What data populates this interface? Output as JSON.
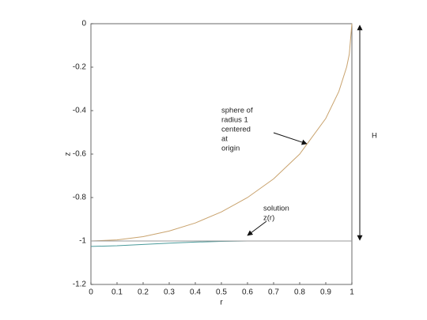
{
  "chart_data": {
    "type": "line",
    "xlabel": "r",
    "ylabel": "z",
    "xlim": [
      0,
      1
    ],
    "ylim": [
      -1.2,
      0
    ],
    "xticks": [
      0,
      0.1,
      0.2,
      0.3,
      0.4,
      0.5,
      0.6,
      0.7,
      0.8,
      0.9,
      1
    ],
    "yticks": [
      -1.2,
      -1,
      -0.8,
      -0.6,
      -0.4,
      -0.2,
      0
    ],
    "series": [
      {
        "color": "#c9a36e",
        "x": [
          0,
          0.1,
          0.2,
          0.3,
          0.4,
          0.5,
          0.6,
          0.7,
          0.8,
          0.9,
          0.95,
          0.98,
          0.99,
          1
        ],
        "values": [
          -1,
          -0.995,
          -0.98,
          -0.954,
          -0.917,
          -0.866,
          -0.8,
          -0.714,
          -0.6,
          -0.436,
          -0.312,
          -0.199,
          -0.141,
          0
        ]
      },
      {
        "color": "#4a9a9a",
        "x": [
          0,
          0.1,
          0.2,
          0.3,
          0.4,
          0.5,
          0.6,
          0.7,
          0.8,
          0.9,
          1
        ],
        "values": [
          -1.025,
          -1.022,
          -1.016,
          -1.01,
          -1.005,
          -1.002,
          -1,
          -1,
          -1,
          -1,
          -1
        ]
      },
      {
        "color": "#9a9a9a",
        "x": [
          0,
          1
        ],
        "values": [
          -1,
          -1
        ]
      }
    ],
    "annotations": [
      {
        "lines": [
          "sphere of",
          "radius 1",
          "centered",
          "at",
          "origin"
        ]
      },
      {
        "lines": [
          "solution",
          "z(r)"
        ]
      },
      {
        "lines": [
          "H"
        ]
      }
    ]
  }
}
